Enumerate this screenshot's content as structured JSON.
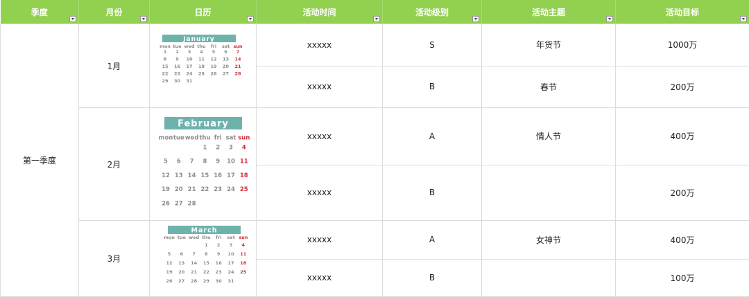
{
  "header": [
    "季度",
    "月份",
    "日历",
    "活动时间",
    "活动级别",
    "活动主题",
    "活动目标"
  ],
  "quarter": "第一季度",
  "weekdays": [
    "mon",
    "tue",
    "wed",
    "thu",
    "fri",
    "sat",
    "sun"
  ],
  "months": [
    {
      "month": "1月",
      "calendar": {
        "name": "January",
        "weeks": [
          [
            1,
            2,
            3,
            4,
            5,
            6,
            7
          ],
          [
            8,
            9,
            10,
            11,
            12,
            13,
            14
          ],
          [
            15,
            16,
            17,
            18,
            19,
            20,
            21
          ],
          [
            22,
            23,
            24,
            25,
            26,
            27,
            28
          ],
          [
            29,
            30,
            31
          ]
        ]
      },
      "rows": [
        {
          "time": "xxxxx",
          "level": "S",
          "theme": "年货节",
          "target": "1000万"
        },
        {
          "time": "xxxxx",
          "level": "B",
          "theme": "春节",
          "target": "200万"
        }
      ]
    },
    {
      "month": "2月",
      "calendar": {
        "name": "February",
        "weeks": [
          [
            null,
            null,
            null,
            1,
            2,
            3,
            4
          ],
          [
            5,
            6,
            7,
            8,
            9,
            10,
            11
          ],
          [
            12,
            13,
            14,
            15,
            16,
            17,
            18
          ],
          [
            19,
            20,
            21,
            22,
            23,
            24,
            25
          ],
          [
            26,
            27,
            28
          ]
        ]
      },
      "rows": [
        {
          "time": "xxxxx",
          "level": "A",
          "theme": "情人节",
          "target": "400万"
        },
        {
          "time": "xxxxx",
          "level": "B",
          "target": "200万"
        }
      ]
    },
    {
      "month": "3月",
      "calendar": {
        "name": "March",
        "weeks": [
          [
            null,
            null,
            null,
            1,
            2,
            3,
            4
          ],
          [
            5,
            6,
            7,
            8,
            9,
            10,
            11
          ],
          [
            12,
            13,
            14,
            15,
            16,
            17,
            18
          ],
          [
            19,
            20,
            21,
            22,
            23,
            24,
            25
          ],
          [
            26,
            27,
            28,
            29,
            30,
            31
          ]
        ]
      },
      "rows": [
        {
          "time": "xxxxx",
          "level": "A",
          "theme": "女神节",
          "target": "400万"
        },
        {
          "time": "xxxxx",
          "level": "B",
          "target": "100万"
        }
      ]
    }
  ]
}
